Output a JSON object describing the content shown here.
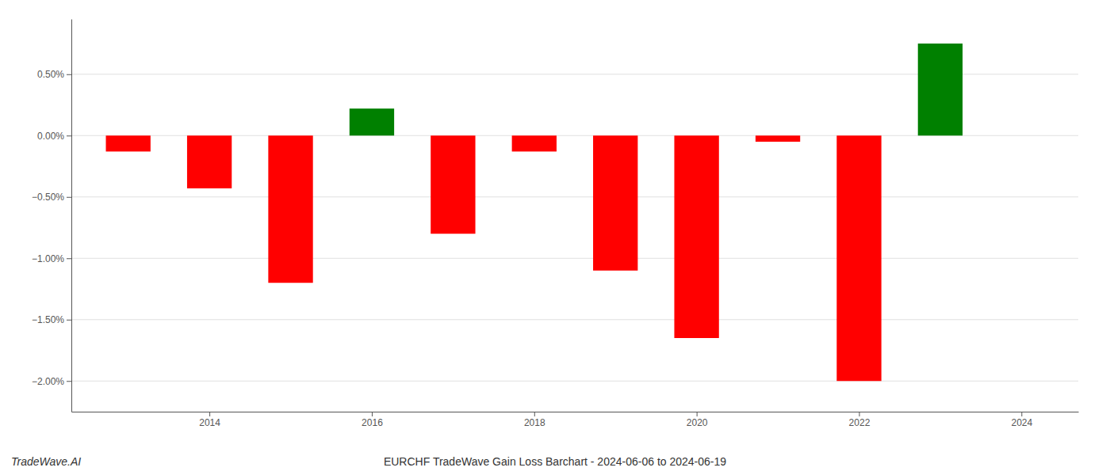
{
  "chart_data": {
    "type": "bar",
    "title": "EURCHF TradeWave Gain Loss Barchart - 2024-06-06 to 2024-06-19",
    "annotations": [
      "TradeWave.AI"
    ],
    "x": [
      2013,
      2014,
      2015,
      2016,
      2017,
      2018,
      2019,
      2020,
      2021,
      2022,
      2023
    ],
    "values": [
      -0.0013,
      -0.0043,
      -0.012,
      0.0022,
      -0.008,
      -0.0013,
      -0.011,
      -0.0165,
      -0.0005,
      -0.02,
      0.0075
    ],
    "colors": [
      "#ff0000",
      "#ff0000",
      "#ff0000",
      "#008000",
      "#ff0000",
      "#ff0000",
      "#ff0000",
      "#ff0000",
      "#ff0000",
      "#ff0000",
      "#008000"
    ],
    "xlim": [
      2012.3,
      2024.7
    ],
    "xticks": [
      2014,
      2016,
      2018,
      2020,
      2022,
      2024
    ],
    "ylim": [
      -0.0225,
      0.0095
    ],
    "yticks": [
      {
        "value": -0.02,
        "label": "−2.00%"
      },
      {
        "value": -0.015,
        "label": "−1.50%"
      },
      {
        "value": -0.01,
        "label": "−1.00%"
      },
      {
        "value": -0.005,
        "label": "−0.50%"
      },
      {
        "value": 0,
        "label": "0.00%"
      },
      {
        "value": 0.005,
        "label": "0.50%"
      }
    ],
    "grid": true
  }
}
